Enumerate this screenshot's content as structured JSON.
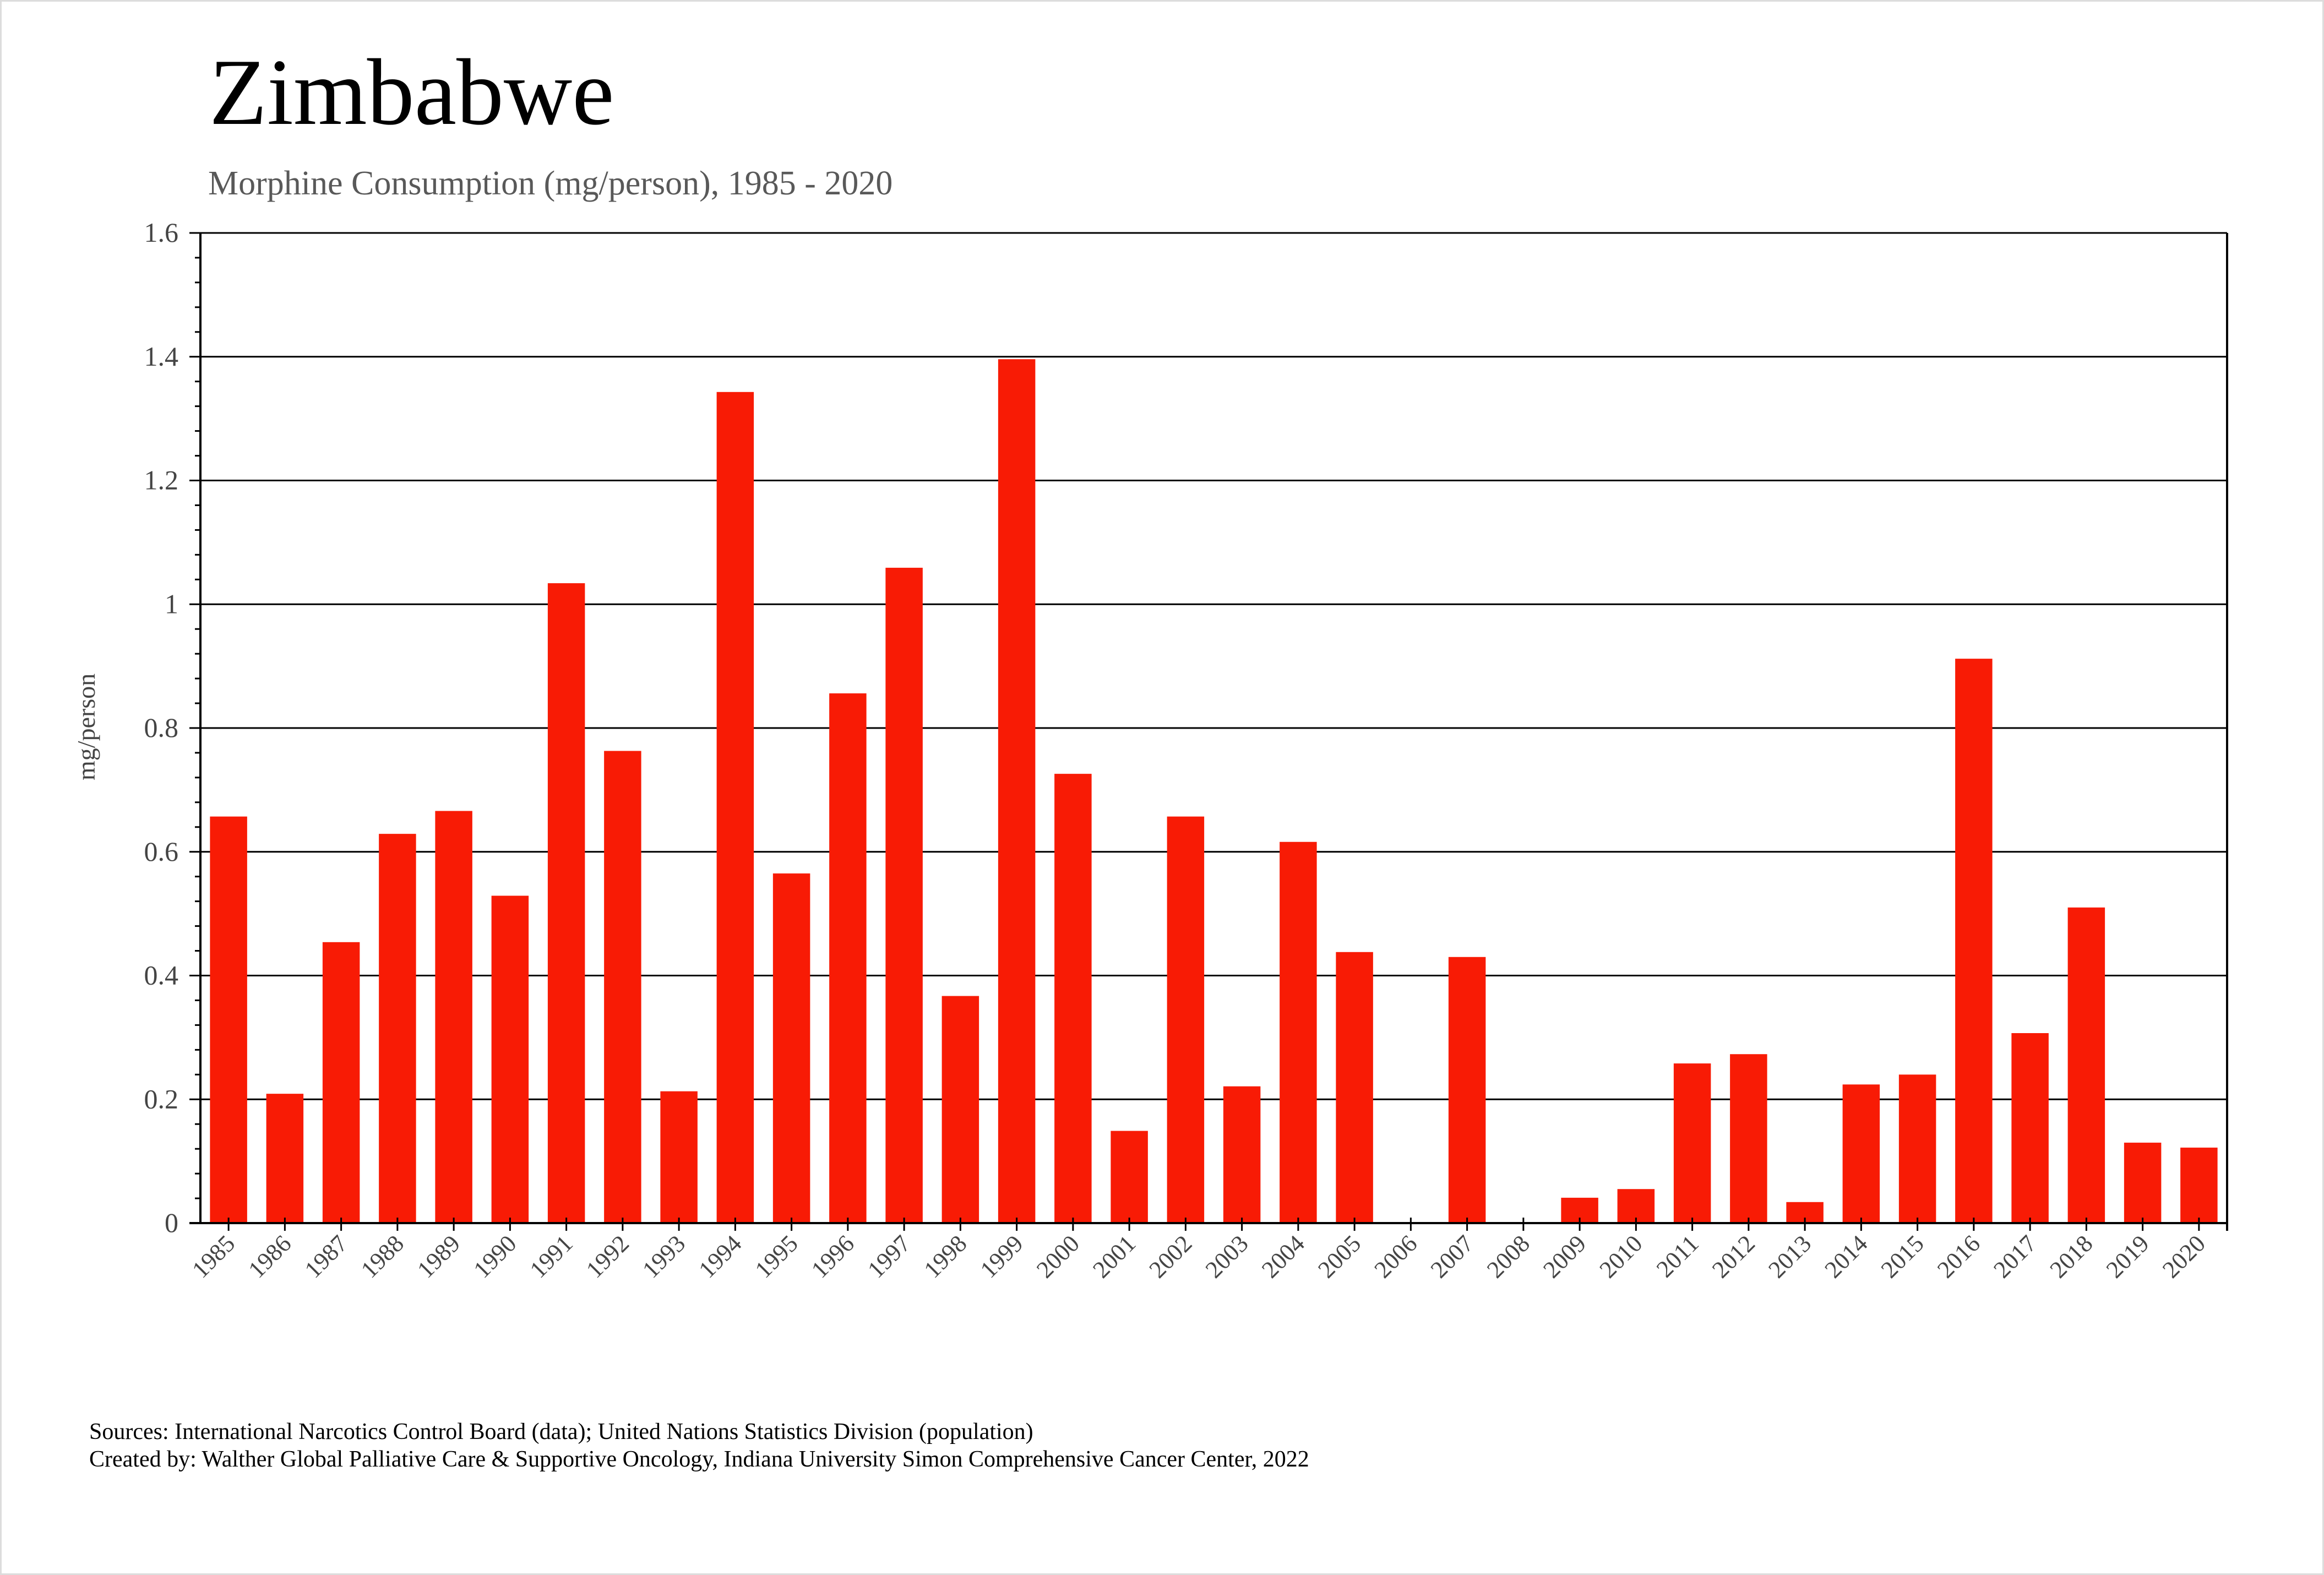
{
  "chart_data": {
    "type": "bar",
    "title": "Zimbabwe",
    "subtitle": "Morphine Consumption (mg/person), 1985 - 2020",
    "xlabel": "",
    "ylabel": "mg/person",
    "ylim": [
      0,
      1.6
    ],
    "yticks": [
      "0",
      "0.2",
      "0.4",
      "0.6",
      "0.8",
      "1",
      "1.2",
      "1.4",
      "1.6"
    ],
    "grid": true,
    "bar_color": "#f81b05",
    "categories": [
      "1985",
      "1986",
      "1987",
      "1988",
      "1989",
      "1990",
      "1991",
      "1992",
      "1993",
      "1994",
      "1995",
      "1996",
      "1997",
      "1998",
      "1999",
      "2000",
      "2001",
      "2002",
      "2003",
      "2004",
      "2005",
      "2006",
      "2007",
      "2008",
      "2009",
      "2010",
      "2011",
      "2012",
      "2013",
      "2014",
      "2015",
      "2016",
      "2017",
      "2018",
      "2019",
      "2020"
    ],
    "values": [
      0.657,
      0.209,
      0.454,
      0.629,
      0.666,
      0.529,
      1.034,
      0.763,
      0.213,
      1.343,
      0.565,
      0.856,
      1.059,
      0.367,
      1.396,
      0.726,
      0.149,
      0.657,
      0.221,
      0.616,
      0.438,
      0,
      0.43,
      0,
      0.041,
      0.055,
      0.258,
      0.273,
      0.034,
      0.224,
      0.24,
      0.912,
      0.307,
      0.51,
      0.13,
      0.122
    ]
  },
  "notes": {
    "sources": "Sources: International Narcotics Control Board (data); United Nations Statistics Division (population)",
    "created_by": "Created by: Walther  Global Palliative Care & Supportive Oncology, Indiana University Simon Comprehensive Cancer Center, 2022"
  }
}
